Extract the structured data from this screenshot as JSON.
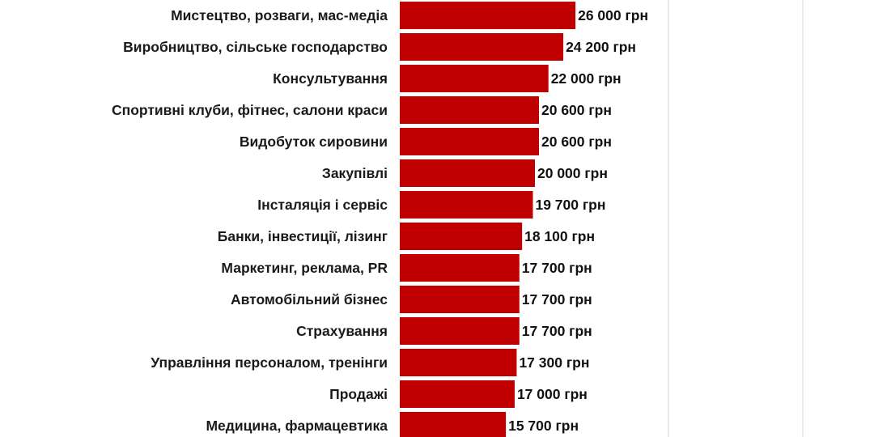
{
  "chart_data": {
    "type": "bar",
    "orientation": "horizontal",
    "categories": [
      "Мистецтво, розваги, мас-медіа",
      "Виробництво, сільське господарство",
      "Консультування",
      "Спортивні клуби, фітнес, салони краси",
      "Видобуток сировини",
      "Закупівлі",
      "Інсталяція і сервіс",
      "Банки, інвестиції, лізинг",
      "Маркетинг, реклама, PR",
      "Автомобільний бізнес",
      "Страхування",
      "Управління персоналом, тренінги",
      "Продажі",
      "Медицина, фармацевтика"
    ],
    "values": [
      26000,
      24200,
      22000,
      20600,
      20600,
      20000,
      19700,
      18100,
      17700,
      17700,
      17700,
      17300,
      17000,
      15700
    ],
    "value_labels": [
      "26 000 грн",
      "24 200 грн",
      "22 000 грн",
      "20 600 грн",
      "20 600 грн",
      "20 000 грн",
      "19 700 грн",
      "18 100 грн",
      "17 700 грн",
      "17 700 грн",
      "17 700 грн",
      "17 300 грн",
      "17 000 грн",
      "15 700 грн"
    ],
    "title": "",
    "xlabel": "",
    "ylabel": "",
    "bar_color": "#c00000",
    "gridlines": true,
    "grid_color": "#e3e3e3"
  }
}
